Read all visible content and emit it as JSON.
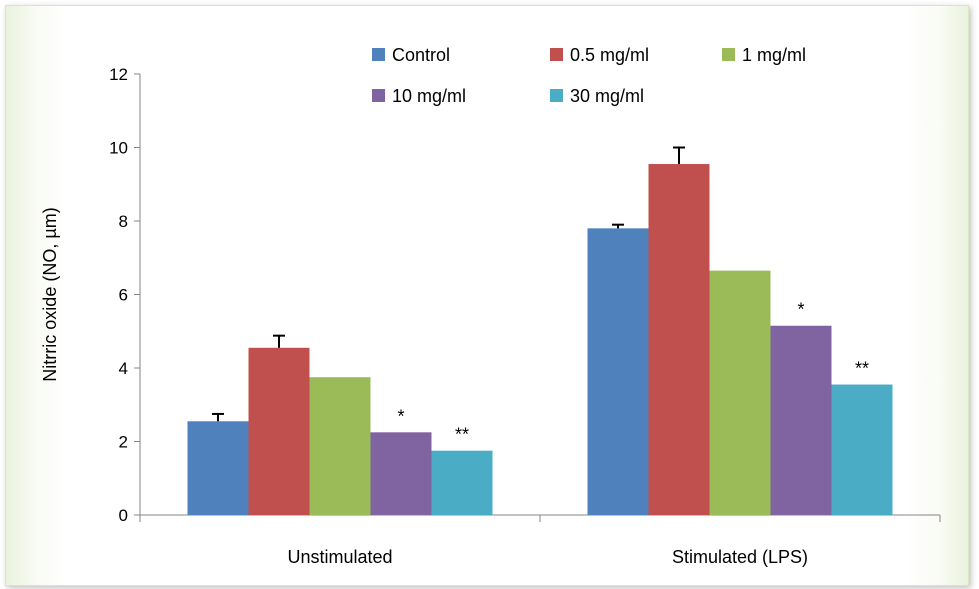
{
  "chart_data": {
    "type": "bar",
    "ylabel": "Nitrric oxide (NO, µm)",
    "xlabel": "",
    "ylim": [
      0,
      12
    ],
    "yticks": [
      0,
      2,
      4,
      6,
      8,
      10,
      12
    ],
    "grid": false,
    "legend_position": "top",
    "categories": [
      "Unstimulated",
      "Stimulated (LPS)"
    ],
    "series": [
      {
        "name": "Control",
        "color": "#4f81bd",
        "values": [
          2.55,
          7.8
        ],
        "errors": [
          0.2,
          0.1
        ],
        "annotations": [
          "",
          ""
        ]
      },
      {
        "name": "0.5 mg/ml",
        "color": "#c0504d",
        "values": [
          4.55,
          9.55
        ],
        "errors": [
          0.33,
          0.45
        ],
        "annotations": [
          "",
          ""
        ]
      },
      {
        "name": "1 mg/ml",
        "color": "#9bbb59",
        "values": [
          3.75,
          6.65
        ],
        "errors": [
          0,
          0
        ],
        "annotations": [
          "",
          ""
        ]
      },
      {
        "name": "10 mg/ml",
        "color": "#8064a2",
        "values": [
          2.25,
          5.15
        ],
        "errors": [
          0,
          0
        ],
        "annotations": [
          "*",
          "*"
        ]
      },
      {
        "name": "30 mg/ml",
        "color": "#4bacc6",
        "values": [
          1.75,
          3.55
        ],
        "errors": [
          0,
          0
        ],
        "annotations": [
          "**",
          "**"
        ]
      }
    ]
  }
}
